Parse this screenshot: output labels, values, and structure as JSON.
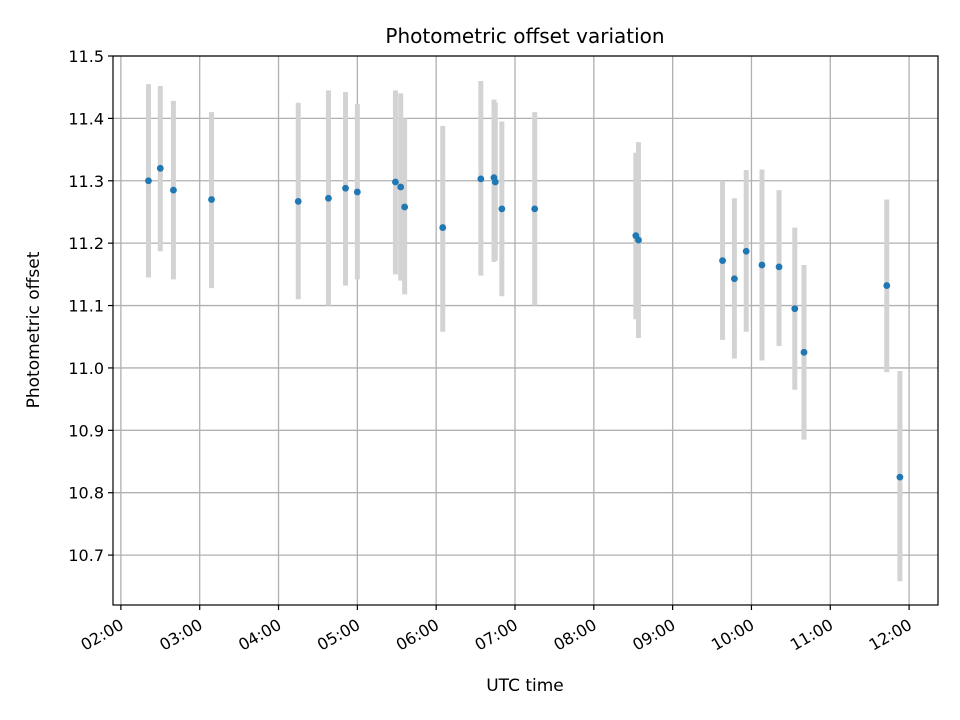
{
  "chart_data": {
    "type": "scatter",
    "title": "Photometric offset variation",
    "xlabel": "UTC time",
    "ylabel": "Photometric offset",
    "xlim": [
      "01:54",
      "12:22"
    ],
    "ylim": [
      10.62,
      11.5
    ],
    "grid": true,
    "x_ticks": [
      "02:00",
      "03:00",
      "04:00",
      "05:00",
      "06:00",
      "07:00",
      "08:00",
      "09:00",
      "10:00",
      "11:00",
      "12:00"
    ],
    "y_ticks": [
      10.7,
      10.8,
      10.9,
      11.0,
      11.1,
      11.2,
      11.3,
      11.4,
      11.5
    ],
    "colors": {
      "point": "#1f77b4",
      "error_bar": "#d3d3d3"
    },
    "series": [
      {
        "points": [
          {
            "x": "02:21",
            "y": 11.3,
            "err_low": 11.145,
            "err_high": 11.455
          },
          {
            "x": "02:30",
            "y": 11.32,
            "err_low": 11.187,
            "err_high": 11.452
          },
          {
            "x": "02:40",
            "y": 11.285,
            "err_low": 11.142,
            "err_high": 11.428
          },
          {
            "x": "03:09",
            "y": 11.27,
            "err_low": 11.128,
            "err_high": 11.41
          },
          {
            "x": "04:15",
            "y": 11.267,
            "err_low": 11.11,
            "err_high": 11.425
          },
          {
            "x": "04:38",
            "y": 11.272,
            "err_low": 11.1,
            "err_high": 11.445
          },
          {
            "x": "04:51",
            "y": 11.288,
            "err_low": 11.132,
            "err_high": 11.442
          },
          {
            "x": "05:00",
            "y": 11.282,
            "err_low": 11.142,
            "err_high": 11.423
          },
          {
            "x": "05:29",
            "y": 11.298,
            "err_low": 11.15,
            "err_high": 11.445
          },
          {
            "x": "05:33",
            "y": 11.29,
            "err_low": 11.14,
            "err_high": 11.44
          },
          {
            "x": "05:36",
            "y": 11.258,
            "err_low": 11.118,
            "err_high": 11.4
          },
          {
            "x": "06:05",
            "y": 11.225,
            "err_low": 11.058,
            "err_high": 11.388
          },
          {
            "x": "06:34",
            "y": 11.303,
            "err_low": 11.148,
            "err_high": 11.46
          },
          {
            "x": "06:44",
            "y": 11.305,
            "err_low": 11.17,
            "err_high": 11.43
          },
          {
            "x": "06:45",
            "y": 11.298,
            "err_low": 11.172,
            "err_high": 11.425
          },
          {
            "x": "06:50",
            "y": 11.255,
            "err_low": 11.115,
            "err_high": 11.395
          },
          {
            "x": "07:15",
            "y": 11.255,
            "err_low": 11.1,
            "err_high": 11.41
          },
          {
            "x": "08:32",
            "y": 11.212,
            "err_low": 11.078,
            "err_high": 11.345
          },
          {
            "x": "08:34",
            "y": 11.205,
            "err_low": 11.048,
            "err_high": 11.362
          },
          {
            "x": "09:38",
            "y": 11.172,
            "err_low": 11.045,
            "err_high": 11.3
          },
          {
            "x": "09:47",
            "y": 11.143,
            "err_low": 11.015,
            "err_high": 11.272
          },
          {
            "x": "09:56",
            "y": 11.187,
            "err_low": 11.058,
            "err_high": 11.317
          },
          {
            "x": "10:08",
            "y": 11.165,
            "err_low": 11.012,
            "err_high": 11.318
          },
          {
            "x": "10:21",
            "y": 11.162,
            "err_low": 11.035,
            "err_high": 11.285
          },
          {
            "x": "10:33",
            "y": 11.095,
            "err_low": 10.965,
            "err_high": 11.225
          },
          {
            "x": "10:40",
            "y": 11.025,
            "err_low": 10.885,
            "err_high": 11.165
          },
          {
            "x": "11:43",
            "y": 11.132,
            "err_low": 10.993,
            "err_high": 11.27
          },
          {
            "x": "11:53",
            "y": 10.825,
            "err_low": 10.658,
            "err_high": 10.995
          }
        ]
      }
    ]
  }
}
